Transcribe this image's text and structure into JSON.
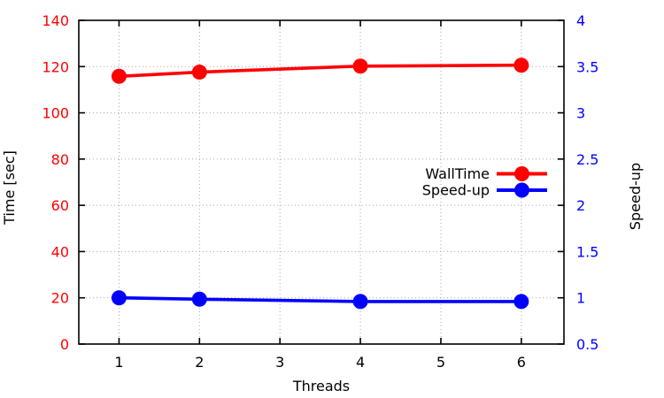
{
  "chart_data": {
    "type": "line",
    "title": "",
    "xlabel": "Threads",
    "ylabel_left": "Time [sec]",
    "ylabel_right": "Speed-up",
    "x": [
      1,
      2,
      4,
      6
    ],
    "series": [
      {
        "name": "WallTime",
        "axis": "left",
        "color": "#ff0000",
        "values": [
          115.8,
          117.6,
          120.2,
          120.6
        ]
      },
      {
        "name": "Speed-up",
        "axis": "right",
        "color": "#0000ff",
        "values": [
          1.0,
          0.985,
          0.96,
          0.96
        ]
      }
    ],
    "xlim": [
      0.5,
      6.53
    ],
    "ylim_left": [
      0,
      140
    ],
    "ylim_right": [
      0.5,
      4
    ],
    "x_ticks": {
      "values": [
        1,
        2,
        3,
        4,
        5,
        6
      ],
      "labels": [
        "1",
        "2",
        "3",
        "4",
        "5",
        "6"
      ]
    },
    "y_left_ticks": {
      "values": [
        0,
        20,
        40,
        60,
        80,
        100,
        120,
        140
      ],
      "labels": [
        "0",
        "20",
        "40",
        "60",
        "80",
        "100",
        "120",
        "140"
      ]
    },
    "y_right_ticks": {
      "values": [
        0.5,
        1,
        1.5,
        2,
        2.5,
        3,
        3.5,
        4
      ],
      "labels": [
        "0.5",
        "1",
        "1.5",
        "2",
        "2.5",
        "3",
        "3.5",
        "4"
      ]
    },
    "grid": true,
    "legend": {
      "position": "inside-center-right",
      "items": [
        "WallTime",
        "Speed-up"
      ]
    }
  },
  "colors": {
    "left_axis_text": "#ff0000",
    "right_axis_text": "#0000ff",
    "x_axis_text": "#000000",
    "grid": "#a8a8a8",
    "border": "#000000",
    "background": "#ffffff"
  }
}
